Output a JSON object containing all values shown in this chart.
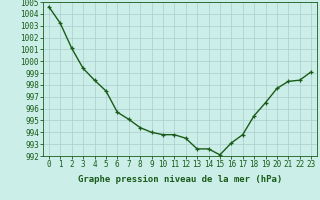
{
  "x": [
    0,
    1,
    2,
    3,
    4,
    5,
    6,
    7,
    8,
    9,
    10,
    11,
    12,
    13,
    14,
    15,
    16,
    17,
    18,
    19,
    20,
    21,
    22,
    23
  ],
  "y": [
    1004.6,
    1003.2,
    1001.1,
    999.4,
    998.4,
    997.5,
    995.7,
    995.1,
    994.4,
    994.0,
    993.8,
    993.8,
    993.5,
    992.6,
    992.6,
    992.1,
    993.1,
    993.8,
    995.4,
    996.5,
    997.7,
    998.3,
    998.4,
    999.1
  ],
  "line_color": "#1a5c1a",
  "bg_color": "#cceee8",
  "grid_color": "#aacccc",
  "xlabel": "Graphe pression niveau de la mer (hPa)",
  "ylim": [
    992,
    1005
  ],
  "xlim_min": -0.5,
  "xlim_max": 23.5,
  "yticks": [
    992,
    993,
    994,
    995,
    996,
    997,
    998,
    999,
    1000,
    1001,
    1002,
    1003,
    1004,
    1005
  ],
  "xticks": [
    0,
    1,
    2,
    3,
    4,
    5,
    6,
    7,
    8,
    9,
    10,
    11,
    12,
    13,
    14,
    15,
    16,
    17,
    18,
    19,
    20,
    21,
    22,
    23
  ],
  "xtick_labels": [
    "0",
    "1",
    "2",
    "3",
    "4",
    "5",
    "6",
    "7",
    "8",
    "9",
    "10",
    "11",
    "12",
    "13",
    "14",
    "15",
    "16",
    "17",
    "18",
    "19",
    "20",
    "21",
    "22",
    "23"
  ],
  "marker": "+",
  "linewidth": 1.0,
  "markersize": 3.5,
  "xlabel_fontsize": 6.5,
  "tick_fontsize": 5.5
}
